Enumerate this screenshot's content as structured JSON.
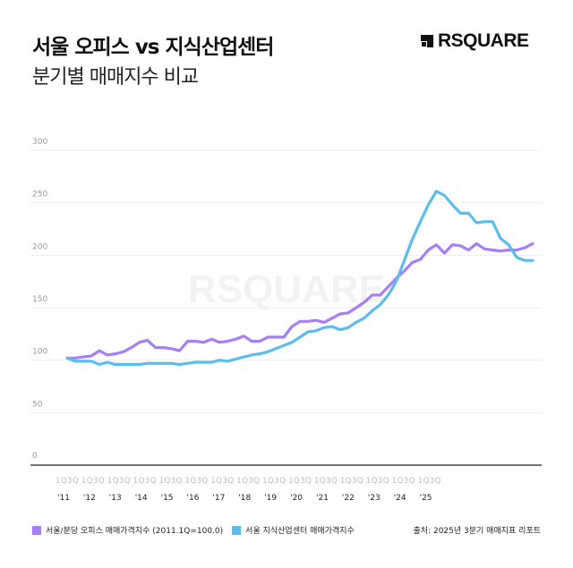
{
  "header": {
    "title": "서울 오피스 vs 지식산업센터",
    "subtitle": "분기별 매매지수 비교",
    "logo": "RSQUARE"
  },
  "watermark": "RSQUARE",
  "legend": {
    "source": "출처: 2025년 3분기 매매지표 리포트"
  },
  "colors": {
    "office": "#a77ef5",
    "knowledge_center": "#5bbcee"
  },
  "chart_data": {
    "type": "line",
    "ylim": [
      0,
      300
    ],
    "yticks": [
      0,
      50,
      100,
      150,
      200,
      250,
      300
    ],
    "grid": true,
    "legend_position": "bottom",
    "quarter_tick_label": "1Q3Q",
    "year_labels": [
      "'11",
      "'12",
      "'13",
      "'14",
      "'15",
      "'16",
      "'17",
      "'18",
      "'19",
      "'20",
      "'21",
      "'22",
      "'23",
      "'24",
      "'25"
    ],
    "x_range": [
      "2011 1Q",
      "2025 3Q"
    ],
    "series": [
      {
        "name": "서울/분당 오피스 매매가격지수 (2011.1Q=100.0)",
        "color": "#a77ef5",
        "values": [
          102,
          102,
          103,
          104,
          109,
          105,
          106,
          108,
          112,
          117,
          119,
          112,
          112,
          111,
          109,
          118,
          118,
          117,
          120,
          117,
          118,
          120,
          123,
          118,
          118,
          122,
          122,
          122,
          132,
          137,
          137,
          138,
          136,
          140,
          144,
          145,
          150,
          155,
          162,
          162,
          170,
          178,
          185,
          193,
          196,
          205,
          210,
          202,
          210,
          209,
          205,
          211,
          206,
          205,
          204,
          205,
          205,
          207,
          211
        ]
      },
      {
        "name": "서울 지식산업센터 매매가격지수",
        "color": "#5bbcee",
        "values": [
          102,
          99,
          99,
          99,
          96,
          98,
          96,
          96,
          96,
          96,
          97,
          97,
          97,
          97,
          96,
          97,
          98,
          98,
          98,
          100,
          99,
          101,
          103,
          105,
          106,
          108,
          111,
          114,
          117,
          122,
          127,
          128,
          131,
          132,
          129,
          131,
          136,
          140,
          147,
          153,
          162,
          175,
          195,
          215,
          232,
          248,
          261,
          257,
          248,
          240,
          240,
          231,
          232,
          232,
          216,
          210,
          198,
          195,
          195
        ]
      }
    ]
  }
}
